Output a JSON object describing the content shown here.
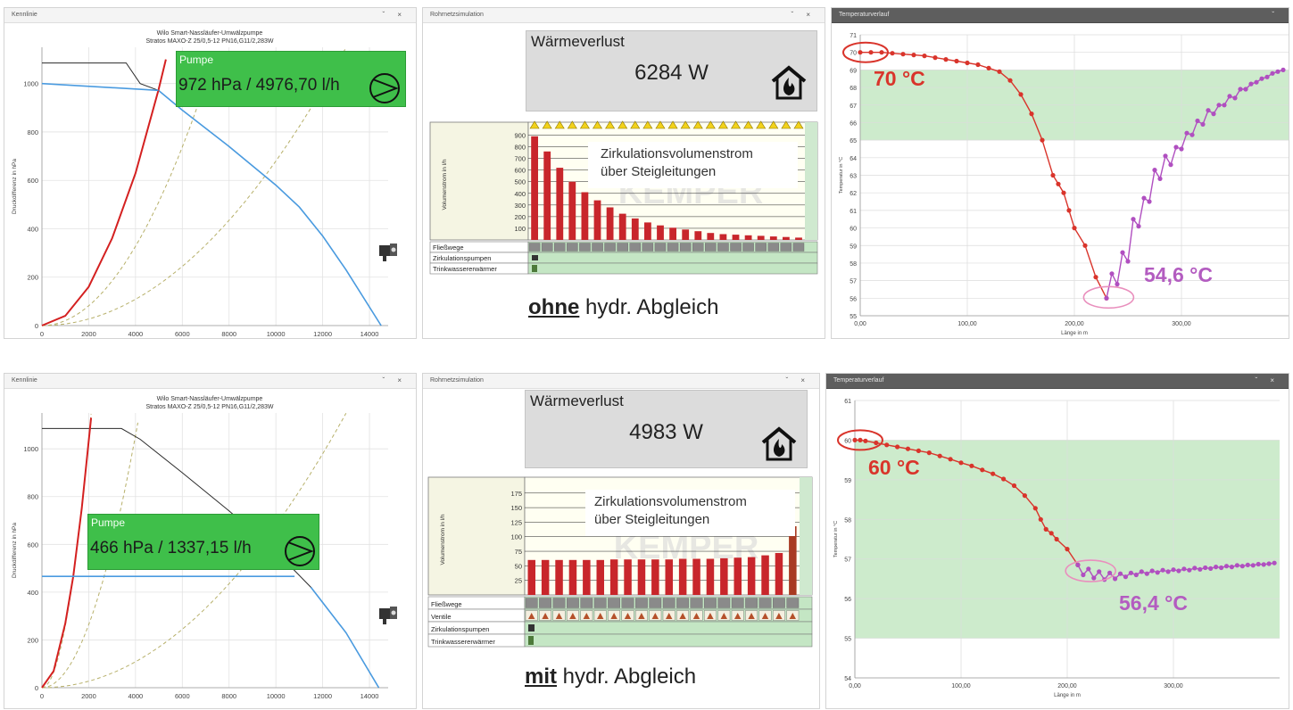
{
  "top": {
    "kennlinie": {
      "panel_title": "Kennlinie",
      "title_line1": "Wilo Smart-Nassläufer-Umwälzpumpe",
      "title_line2": "Stratos MAXO-Z 25/0,5-12 PN16,G11/2,283W",
      "ylabel": "Druckdifferenz in hPa",
      "xticks": [
        "0",
        "2000",
        "4000",
        "6000",
        "8000",
        "10000",
        "12000",
        "14000"
      ],
      "yticks": [
        "0",
        "200",
        "400",
        "600",
        "800",
        "1000"
      ],
      "pump_label": "Pumpe",
      "pump_value": "972 hPa  /  4976,70 l/h"
    },
    "rohrnetz": {
      "panel_title": "Rohrnetzsimulation",
      "waermeverlust_label": "Wärmeverlust",
      "waermeverlust_value": "6284 W",
      "flow_title_line1": "Zirkulationsvolumenstrom",
      "flow_title_line2": "über Steigleitungen",
      "ylabel": "Volumenstrom in l/h",
      "yticks": [
        "100",
        "200",
        "300",
        "400",
        "500",
        "600",
        "700",
        "800",
        "900"
      ],
      "rows": [
        "Fließwege",
        "Zirkulationspumpen",
        "Trinkwassererwärmer"
      ],
      "caption_bold": "ohne",
      "caption_rest": " hydr. Abgleich"
    },
    "temperatur": {
      "panel_title": "Temperaturverlauf",
      "ylabel": "Temperatur in °C",
      "xlabel": "Länge in m",
      "xticks": [
        "0,00",
        "100,00",
        "200,00",
        "300,00"
      ],
      "yticks": [
        "55",
        "56",
        "57",
        "58",
        "59",
        "60",
        "61",
        "62",
        "63",
        "64",
        "65",
        "66",
        "67",
        "68",
        "69",
        "70",
        "71"
      ],
      "anno_start": "70 °C",
      "anno_min": "54,6 °C"
    }
  },
  "bottom": {
    "kennlinie": {
      "panel_title": "Kennlinie",
      "title_line1": "Wilo Smart-Nassläufer-Umwälzpumpe",
      "title_line2": "Stratos MAXO-Z 25/0,5-12 PN16,G11/2,283W",
      "ylabel": "Druckdifferenz in hPa",
      "xticks": [
        "0",
        "2000",
        "4000",
        "6000",
        "8000",
        "10000",
        "12000",
        "14000"
      ],
      "yticks": [
        "0",
        "200",
        "400",
        "600",
        "800",
        "1000"
      ],
      "pump_label": "Pumpe",
      "pump_value": "466 hPa  /  1337,15 l/h"
    },
    "rohrnetz": {
      "panel_title": "Rohrnetzsimulation",
      "waermeverlust_label": "Wärmeverlust",
      "waermeverlust_value": "4983 W",
      "flow_title_line1": "Zirkulationsvolumenstrom",
      "flow_title_line2": "über Steigleitungen",
      "ylabel": "Volumenstrom in l/h",
      "yticks": [
        "25",
        "50",
        "75",
        "100",
        "125",
        "150",
        "175"
      ],
      "rows": [
        "Fließwege",
        "Ventile",
        "Zirkulationspumpen",
        "Trinkwassererwärmer"
      ],
      "caption_bold": "mit",
      "caption_rest": " hydr. Abgleich"
    },
    "temperatur": {
      "panel_title": "Temperaturverlauf",
      "ylabel": "Temperatur in °C",
      "xlabel": "Länge in m",
      "xticks": [
        "0,00",
        "100,00",
        "200,00",
        "300,00"
      ],
      "yticks": [
        "54",
        "55",
        "56",
        "57",
        "58",
        "59",
        "60",
        "61"
      ],
      "anno_start": "60 °C",
      "anno_min": "56,4 °C"
    }
  },
  "colors": {
    "pump_curve": "#2b2b2b",
    "system_curve": "#d42020",
    "operating_line": "#4a9be0",
    "dashed": "#b7b06a",
    "bar": "#c8262b",
    "bar_last_bottom": "#a83a22",
    "green_band": "#cdebcc",
    "temp_red": "#d9342b",
    "temp_purple": "#b04fc0",
    "anno_red": "#d9342b",
    "anno_purple": "#b35cc0"
  },
  "chart_data": [
    {
      "type": "line",
      "title": "Wilo Smart-Nassläufer-Umwälzpumpe",
      "subtitle": "Stratos MAXO-Z 25/0,5-12 PN16,G11/2,283W",
      "ylabel": "Druckdifferenz in hPa",
      "xlim": [
        0,
        14800
      ],
      "ylim": [
        0,
        1150
      ],
      "series": [
        {
          "role": "pump",
          "x": [
            0,
            3600,
            4200,
            4976.7,
            6000,
            8000,
            10000,
            11000,
            12000,
            13000,
            14500
          ],
          "y": [
            1085,
            1085,
            1000,
            972,
            890,
            740,
            580,
            490,
            370,
            230,
            0
          ]
        },
        {
          "role": "system",
          "x": [
            0,
            1000,
            2000,
            3000,
            4000,
            4976.7,
            5300
          ],
          "y": [
            0,
            40,
            160,
            360,
            630,
            972,
            1100
          ]
        },
        {
          "role": "operating",
          "x": [
            0,
            4976.7
          ],
          "y": [
            1000,
            972
          ]
        }
      ]
    },
    {
      "type": "bar",
      "title": "Zirkulationsvolumenstrom über Steigleitungen",
      "ylabel": "Volumenstrom in l/h",
      "ylim": [
        0,
        950
      ],
      "values": [
        890,
        760,
        620,
        500,
        410,
        340,
        280,
        225,
        185,
        150,
        125,
        105,
        90,
        75,
        60,
        50,
        45,
        40,
        35,
        30,
        25,
        20
      ]
    },
    {
      "type": "line",
      "ylabel": "Temperatur in °C",
      "xlabel": "Länge in m",
      "xlim": [
        0,
        400
      ],
      "ylim": [
        55,
        71
      ],
      "band": [
        65,
        69
      ],
      "series": [
        {
          "role": "main",
          "x": [
            0,
            10,
            20,
            30,
            40,
            50,
            60,
            70,
            80,
            90,
            100,
            110,
            120,
            130,
            140,
            150,
            160,
            170,
            180,
            185,
            190,
            195,
            200,
            210,
            220,
            230
          ],
          "y": [
            70,
            70,
            70,
            69.95,
            69.9,
            69.85,
            69.8,
            69.7,
            69.6,
            69.5,
            69.4,
            69.3,
            69.1,
            68.9,
            68.4,
            67.6,
            66.5,
            65,
            63,
            62.5,
            62,
            61,
            60,
            59,
            57.2,
            56
          ]
        },
        {
          "role": "risers",
          "x": [
            230,
            235,
            240,
            245,
            250,
            255,
            260,
            265,
            270,
            275,
            280,
            285,
            290,
            295,
            300,
            305,
            310,
            315,
            320,
            325,
            330,
            335,
            340,
            345,
            350,
            355,
            360,
            365,
            370,
            375,
            380,
            385,
            390,
            395
          ],
          "y": [
            56,
            57.4,
            56.8,
            58.6,
            58.1,
            60.5,
            60.1,
            61.7,
            61.5,
            63.3,
            62.8,
            64.1,
            63.6,
            64.6,
            64.5,
            65.4,
            65.3,
            66.1,
            65.9,
            66.7,
            66.5,
            67,
            67,
            67.5,
            67.4,
            67.9,
            67.9,
            68.2,
            68.3,
            68.5,
            68.6,
            68.8,
            68.9,
            69
          ]
        }
      ]
    },
    {
      "type": "line",
      "title": "Wilo Smart-Nassläufer-Umwälzpumpe",
      "subtitle": "Stratos MAXO-Z 25/0,5-12 PN16,G11/2,283W",
      "ylabel": "Druckdifferenz in hPa",
      "xlim": [
        0,
        14800
      ],
      "ylim": [
        0,
        1150
      ],
      "series": [
        {
          "role": "pump",
          "x": [
            0,
            3400,
            4200,
            6000,
            8000,
            10000,
            11500,
            13000,
            14400
          ],
          "y": [
            1085,
            1085,
            1040,
            900,
            740,
            570,
            420,
            230,
            0
          ]
        },
        {
          "role": "system",
          "x": [
            0,
            500,
            1000,
            1337.15,
            1700,
            2100
          ],
          "y": [
            0,
            70,
            270,
            466,
            750,
            1130
          ]
        },
        {
          "role": "operating",
          "x": [
            0,
            10800
          ],
          "y": [
            466,
            466
          ]
        }
      ]
    },
    {
      "type": "bar",
      "title": "Zirkulationsvolumenstrom über Steigleitungen",
      "ylabel": "Volumenstrom in l/h",
      "ylim": [
        0,
        190
      ],
      "values": [
        60,
        60,
        60,
        60,
        60,
        60,
        61,
        61,
        61,
        61,
        61,
        62,
        62,
        62,
        63,
        64,
        65,
        68,
        72,
        118
      ]
    },
    {
      "type": "line",
      "ylabel": "Temperatur in °C",
      "xlabel": "Länge in m",
      "xlim": [
        0,
        400
      ],
      "ylim": [
        54,
        61
      ],
      "band": [
        55,
        60
      ],
      "series": [
        {
          "role": "main",
          "x": [
            0,
            5,
            10,
            20,
            30,
            40,
            50,
            60,
            70,
            80,
            90,
            100,
            110,
            120,
            130,
            140,
            150,
            160,
            170,
            175,
            180,
            185,
            190,
            200,
            210
          ],
          "y": [
            60,
            60,
            59.98,
            59.93,
            59.88,
            59.83,
            59.78,
            59.73,
            59.68,
            59.6,
            59.52,
            59.43,
            59.35,
            59.25,
            59.15,
            59.02,
            58.85,
            58.6,
            58.28,
            58,
            57.75,
            57.65,
            57.5,
            57.25,
            56.85
          ]
        },
        {
          "role": "risers",
          "x": [
            210,
            215,
            220,
            225,
            230,
            235,
            240,
            245,
            250,
            255,
            260,
            265,
            270,
            275,
            280,
            285,
            290,
            295,
            300,
            305,
            310,
            315,
            320,
            325,
            330,
            335,
            340,
            345,
            350,
            355,
            360,
            365,
            370,
            375,
            380,
            385,
            390,
            395
          ],
          "y": [
            56.85,
            56.6,
            56.75,
            56.52,
            56.68,
            56.48,
            56.65,
            56.5,
            56.63,
            56.55,
            56.65,
            56.6,
            56.68,
            56.63,
            56.7,
            56.66,
            56.72,
            56.68,
            56.73,
            56.7,
            56.75,
            56.72,
            56.77,
            56.74,
            56.78,
            56.76,
            56.8,
            56.78,
            56.82,
            56.8,
            56.84,
            56.82,
            56.85,
            56.84,
            56.87,
            56.86,
            56.88,
            56.9
          ]
        }
      ]
    }
  ]
}
